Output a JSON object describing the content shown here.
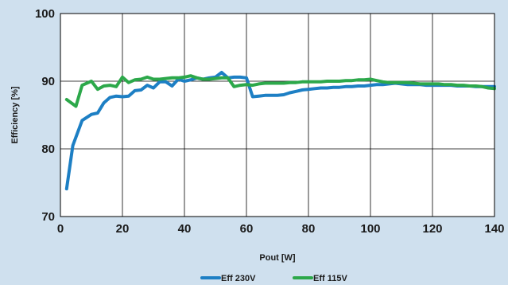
{
  "chart_data": {
    "type": "line",
    "xlabel": "Pout [W]",
    "ylabel": "Efficiency [%]",
    "xlim": [
      0,
      140
    ],
    "ylim": [
      70,
      100
    ],
    "x_ticks": [
      0,
      20,
      40,
      60,
      80,
      100,
      120,
      140
    ],
    "y_ticks": [
      70,
      80,
      90,
      100
    ],
    "grid": true,
    "legend_position": "bottom-center",
    "colors": {
      "background": "#cfe0ee",
      "plot_area": "#ffffff",
      "grid": "#000000"
    },
    "series": [
      {
        "name": "Eff 230V",
        "color": "#1d7fc4",
        "x": [
          2,
          4,
          7,
          10,
          12,
          14,
          16,
          18,
          20,
          22,
          24,
          26,
          28,
          30,
          32,
          34,
          36,
          38,
          40,
          42,
          44,
          46,
          48,
          50,
          52,
          54,
          56,
          58,
          60,
          62,
          64,
          66,
          68,
          70,
          72,
          74,
          76,
          78,
          80,
          82,
          84,
          86,
          88,
          90,
          92,
          94,
          96,
          98,
          100,
          102,
          104,
          106,
          108,
          110,
          112,
          114,
          116,
          118,
          120,
          122,
          124,
          126,
          128,
          130,
          132,
          134,
          136,
          138,
          140
        ],
        "values": [
          74.1,
          80.5,
          84.2,
          85.1,
          85.3,
          86.8,
          87.6,
          87.8,
          87.7,
          87.8,
          88.6,
          88.7,
          89.4,
          89.0,
          89.9,
          89.9,
          89.3,
          90.3,
          90.0,
          90.2,
          90.5,
          90.3,
          90.5,
          90.6,
          91.3,
          90.5,
          90.6,
          90.6,
          90.5,
          87.7,
          87.8,
          87.9,
          87.9,
          87.9,
          88.0,
          88.3,
          88.5,
          88.7,
          88.8,
          88.9,
          89.0,
          89.0,
          89.1,
          89.1,
          89.2,
          89.2,
          89.3,
          89.3,
          89.4,
          89.5,
          89.5,
          89.6,
          89.7,
          89.6,
          89.5,
          89.5,
          89.5,
          89.4,
          89.4,
          89.4,
          89.4,
          89.4,
          89.3,
          89.3,
          89.3,
          89.2,
          89.2,
          89.2,
          89.2
        ]
      },
      {
        "name": "Eff 115V",
        "color": "#2ca84a",
        "x": [
          2,
          5,
          7,
          10,
          12,
          14,
          16,
          18,
          20,
          22,
          24,
          26,
          28,
          30,
          32,
          34,
          36,
          38,
          40,
          42,
          44,
          46,
          48,
          50,
          52,
          54,
          56,
          58,
          60,
          62,
          64,
          66,
          68,
          70,
          72,
          74,
          76,
          78,
          80,
          82,
          84,
          86,
          88,
          90,
          92,
          94,
          96,
          98,
          100,
          102,
          104,
          106,
          108,
          110,
          112,
          114,
          116,
          118,
          120,
          122,
          124,
          126,
          128,
          130,
          132,
          134,
          136,
          138,
          140
        ],
        "values": [
          87.3,
          86.3,
          89.4,
          90.0,
          88.8,
          89.3,
          89.4,
          89.2,
          90.6,
          89.8,
          90.2,
          90.3,
          90.6,
          90.3,
          90.3,
          90.4,
          90.5,
          90.5,
          90.6,
          90.8,
          90.5,
          90.3,
          90.3,
          90.4,
          90.5,
          90.5,
          89.2,
          89.4,
          89.5,
          89.4,
          89.6,
          89.7,
          89.7,
          89.7,
          89.7,
          89.8,
          89.8,
          89.9,
          89.9,
          89.9,
          89.9,
          90.0,
          90.0,
          90.0,
          90.1,
          90.1,
          90.2,
          90.2,
          90.3,
          90.1,
          89.9,
          89.8,
          89.8,
          89.8,
          89.8,
          89.7,
          89.6,
          89.6,
          89.6,
          89.6,
          89.5,
          89.5,
          89.4,
          89.4,
          89.3,
          89.3,
          89.2,
          89.0,
          88.9
        ]
      }
    ]
  }
}
